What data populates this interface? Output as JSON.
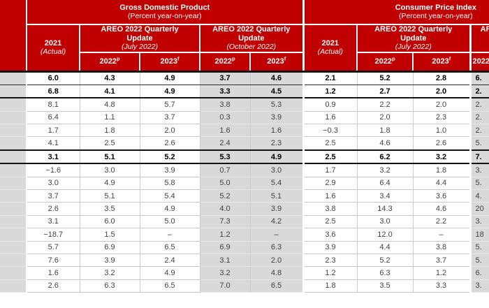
{
  "colors": {
    "header_red": "#c00000",
    "header_text": "#ffffff",
    "shaded_column_gray": "#d9d9d9",
    "body_text": "#424242",
    "bold_text": "#000000",
    "dark_rule": "#151515"
  },
  "header": {
    "gdp": {
      "title": "Gross Domestic Product",
      "subtitle": "(Percent year-on-year)"
    },
    "cpi": {
      "title": "Consumer Price Index",
      "subtitle": "(Percent year-on-year)"
    },
    "col2021": {
      "year": "2021",
      "note": "(Actual)"
    },
    "areo_july": {
      "line1": "AREO 2022 Quarterly",
      "line2": "Update",
      "note": "(July 2022)"
    },
    "areo_oct": {
      "line1": "AREO 2022 Quarterly",
      "line2": "Update",
      "note": "(October 2022)"
    },
    "y2022": {
      "text": "2022",
      "sup": "p"
    },
    "y2023": {
      "text": "2023",
      "sup": "f"
    }
  },
  "rows": [
    {
      "bold": true,
      "gdp": [
        "6.0",
        "4.3",
        "4.9",
        "3.7",
        "4.6"
      ],
      "cpi": [
        "2.1",
        "5.2",
        "2.8"
      ],
      "cpi_oct_partial": "6."
    },
    {
      "bold": true,
      "gdp": [
        "6.8",
        "4.1",
        "4.9",
        "3.3",
        "4.5"
      ],
      "cpi": [
        "1.2",
        "2.7",
        "2.0"
      ],
      "cpi_oct_partial": "2."
    },
    {
      "bold": false,
      "gdp": [
        "8.1",
        "4.8",
        "5.7",
        "3.8",
        "5.3"
      ],
      "cpi": [
        "0.9",
        "2.2",
        "2.0"
      ],
      "cpi_oct_partial": "2."
    },
    {
      "bold": false,
      "gdp": [
        "6.4",
        "1.1",
        "3.7",
        "0.3",
        "3.9"
      ],
      "cpi": [
        "1.6",
        "2.0",
        "2.3"
      ],
      "cpi_oct_partial": "2."
    },
    {
      "bold": false,
      "gdp": [
        "1.7",
        "1.8",
        "2.0",
        "1.6",
        "1.6"
      ],
      "cpi": [
        "−0.3",
        "1.8",
        "1.0"
      ],
      "cpi_oct_partial": "2."
    },
    {
      "bold": false,
      "gdp": [
        "4.1",
        "2.5",
        "2.6",
        "2.4",
        "2.3"
      ],
      "cpi": [
        "2.5",
        "4.6",
        "2.6"
      ],
      "cpi_oct_partial": "5."
    },
    {
      "bold": true,
      "gdp": [
        "3.1",
        "5.1",
        "5.2",
        "5.3",
        "4.9"
      ],
      "cpi": [
        "2.5",
        "6.2",
        "3.2"
      ],
      "cpi_oct_partial": "7."
    },
    {
      "bold": false,
      "gdp": [
        "−1.6",
        "3.0",
        "3.9",
        "0.7",
        "3.0"
      ],
      "cpi": [
        "1.7",
        "3.2",
        "1.8"
      ],
      "cpi_oct_partial": "3."
    },
    {
      "bold": false,
      "gdp": [
        "3.0",
        "4.9",
        "5.8",
        "5.0",
        "5.4"
      ],
      "cpi": [
        "2.9",
        "6.4",
        "4.4"
      ],
      "cpi_oct_partial": "5."
    },
    {
      "bold": false,
      "gdp": [
        "3.7",
        "5.1",
        "5.4",
        "5.2",
        "5.1"
      ],
      "cpi": [
        "1.6",
        "3.4",
        "3.6"
      ],
      "cpi_oct_partial": "4."
    },
    {
      "bold": false,
      "gdp": [
        "2.6",
        "3.5",
        "4.9",
        "4.0",
        "3.9"
      ],
      "cpi": [
        "3.8",
        "14.3",
        "4.6"
      ],
      "cpi_oct_partial": "20"
    },
    {
      "bold": false,
      "gdp": [
        "3.1",
        "6.0",
        "5.0",
        "7.3",
        "4.2"
      ],
      "cpi": [
        "2.5",
        "3.0",
        "2.2"
      ],
      "cpi_oct_partial": "3."
    },
    {
      "bold": false,
      "gdp": [
        "−18.7",
        "1.5",
        "–",
        "1.2",
        "–"
      ],
      "cpi": [
        "3.6",
        "12.0",
        "–"
      ],
      "cpi_oct_partial": "18"
    },
    {
      "bold": false,
      "gdp": [
        "5.7",
        "6.9",
        "6.5",
        "6.9",
        "6.3"
      ],
      "cpi": [
        "3.9",
        "4.4",
        "3.8"
      ],
      "cpi_oct_partial": "5."
    },
    {
      "bold": false,
      "gdp": [
        "7.6",
        "3.9",
        "2.4",
        "3.1",
        "2.0"
      ],
      "cpi": [
        "2.3",
        "5.2",
        "3.7"
      ],
      "cpi_oct_partial": "5."
    },
    {
      "bold": false,
      "gdp": [
        "1.6",
        "3.2",
        "4.9",
        "3.2",
        "4.8"
      ],
      "cpi": [
        "1.2",
        "6.3",
        "1.2"
      ],
      "cpi_oct_partial": "6."
    },
    {
      "bold": false,
      "gdp": [
        "2.6",
        "6.3",
        "6.5",
        "7.0",
        "6.5"
      ],
      "cpi": [
        "1.8",
        "3.5",
        "3.3"
      ],
      "cpi_oct_partial": "3."
    }
  ]
}
